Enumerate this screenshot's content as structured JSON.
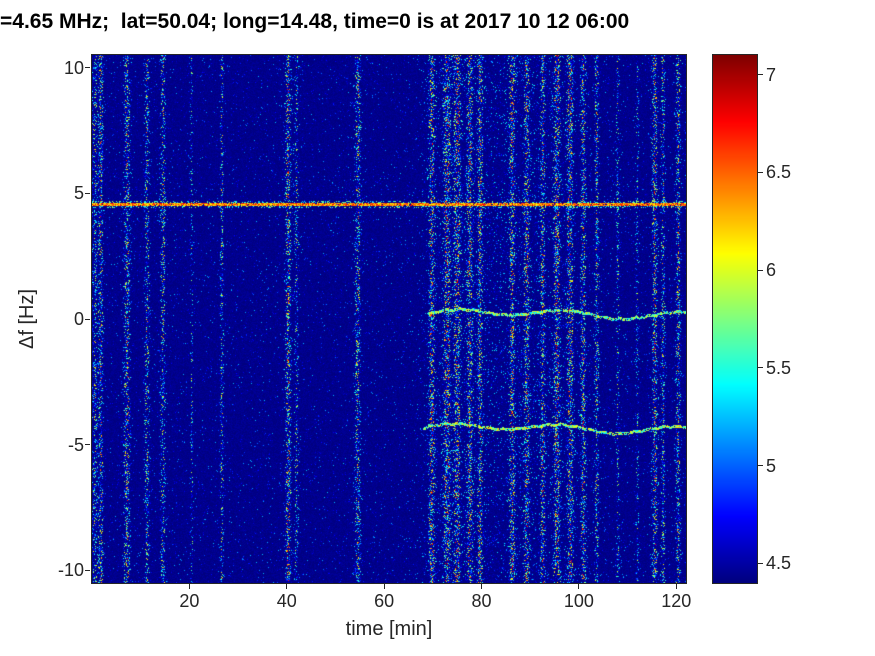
{
  "chart_data": {
    "type": "heatmap",
    "title": "=4.65 MHz;  lat=50.04; long=14.48, time=0 is at 2017 10 12 06:00",
    "xlabel": "time [min]",
    "ylabel": "Δf [Hz]",
    "xlim": [
      0,
      122
    ],
    "ylim": [
      -10.5,
      10.5
    ],
    "xticks": [
      20,
      40,
      60,
      80,
      100,
      120
    ],
    "yticks": [
      -10,
      -5,
      0,
      5,
      10
    ],
    "grid": false,
    "colorbar": {
      "colormap": "jet",
      "clim": [
        4.4,
        7.1
      ],
      "ticks": [
        4.5,
        5,
        5.5,
        6,
        6.5,
        7
      ],
      "position": "right"
    },
    "background_level": 4.45,
    "carrier_line": {
      "freq": 4.55,
      "min_level": 6.0,
      "max_level": 6.8,
      "note": "bright horizontal spectral line across all times"
    },
    "doppler_traces": [
      {
        "freq": 0.2,
        "t_start": 69,
        "t_end": 122,
        "level": 5.7
      },
      {
        "freq": -4.35,
        "t_start": 68,
        "t_end": 122,
        "level": 5.75
      }
    ],
    "interference_bursts": [
      {
        "t": 0.6,
        "w": 0.5,
        "s": 0.7
      },
      {
        "t": 1.8,
        "w": 0.5,
        "s": 0.9
      },
      {
        "t": 7.2,
        "w": 0.6,
        "s": 0.95
      },
      {
        "t": 11.3,
        "w": 0.45,
        "s": 0.8
      },
      {
        "t": 14.6,
        "w": 0.5,
        "s": 0.8
      },
      {
        "t": 20.5,
        "w": 0.25,
        "s": 0.55
      },
      {
        "t": 26.7,
        "w": 0.3,
        "s": 0.75
      },
      {
        "t": 40.3,
        "w": 0.55,
        "s": 1.0
      },
      {
        "t": 42.0,
        "w": 0.4,
        "s": 0.6
      },
      {
        "t": 54.6,
        "w": 0.55,
        "s": 0.9
      },
      {
        "t": 69.8,
        "w": 0.6,
        "s": 1.0
      },
      {
        "t": 72.9,
        "w": 0.6,
        "s": 1.1
      },
      {
        "t": 75.0,
        "w": 0.6,
        "s": 1.0
      },
      {
        "t": 77.6,
        "w": 0.5,
        "s": 0.95
      },
      {
        "t": 79.7,
        "w": 0.5,
        "s": 0.9
      },
      {
        "t": 74.0,
        "w": 5.0,
        "s": 0.15
      },
      {
        "t": 86.3,
        "w": 0.5,
        "s": 1.0
      },
      {
        "t": 89.3,
        "w": 0.5,
        "s": 0.95
      },
      {
        "t": 92.6,
        "w": 0.45,
        "s": 0.85
      },
      {
        "t": 95.5,
        "w": 0.6,
        "s": 1.1
      },
      {
        "t": 98.2,
        "w": 0.6,
        "s": 1.15
      },
      {
        "t": 100.9,
        "w": 0.5,
        "s": 0.95
      },
      {
        "t": 103.7,
        "w": 0.4,
        "s": 0.8
      },
      {
        "t": 88.0,
        "w": 12.0,
        "s": 0.15
      },
      {
        "t": 108.0,
        "w": 0.3,
        "s": 0.6
      },
      {
        "t": 112.0,
        "w": 0.3,
        "s": 0.5
      },
      {
        "t": 115.6,
        "w": 0.55,
        "s": 1.0
      },
      {
        "t": 117.3,
        "w": 0.4,
        "s": 0.8
      },
      {
        "t": 120.4,
        "w": 0.45,
        "s": 0.9
      }
    ]
  }
}
